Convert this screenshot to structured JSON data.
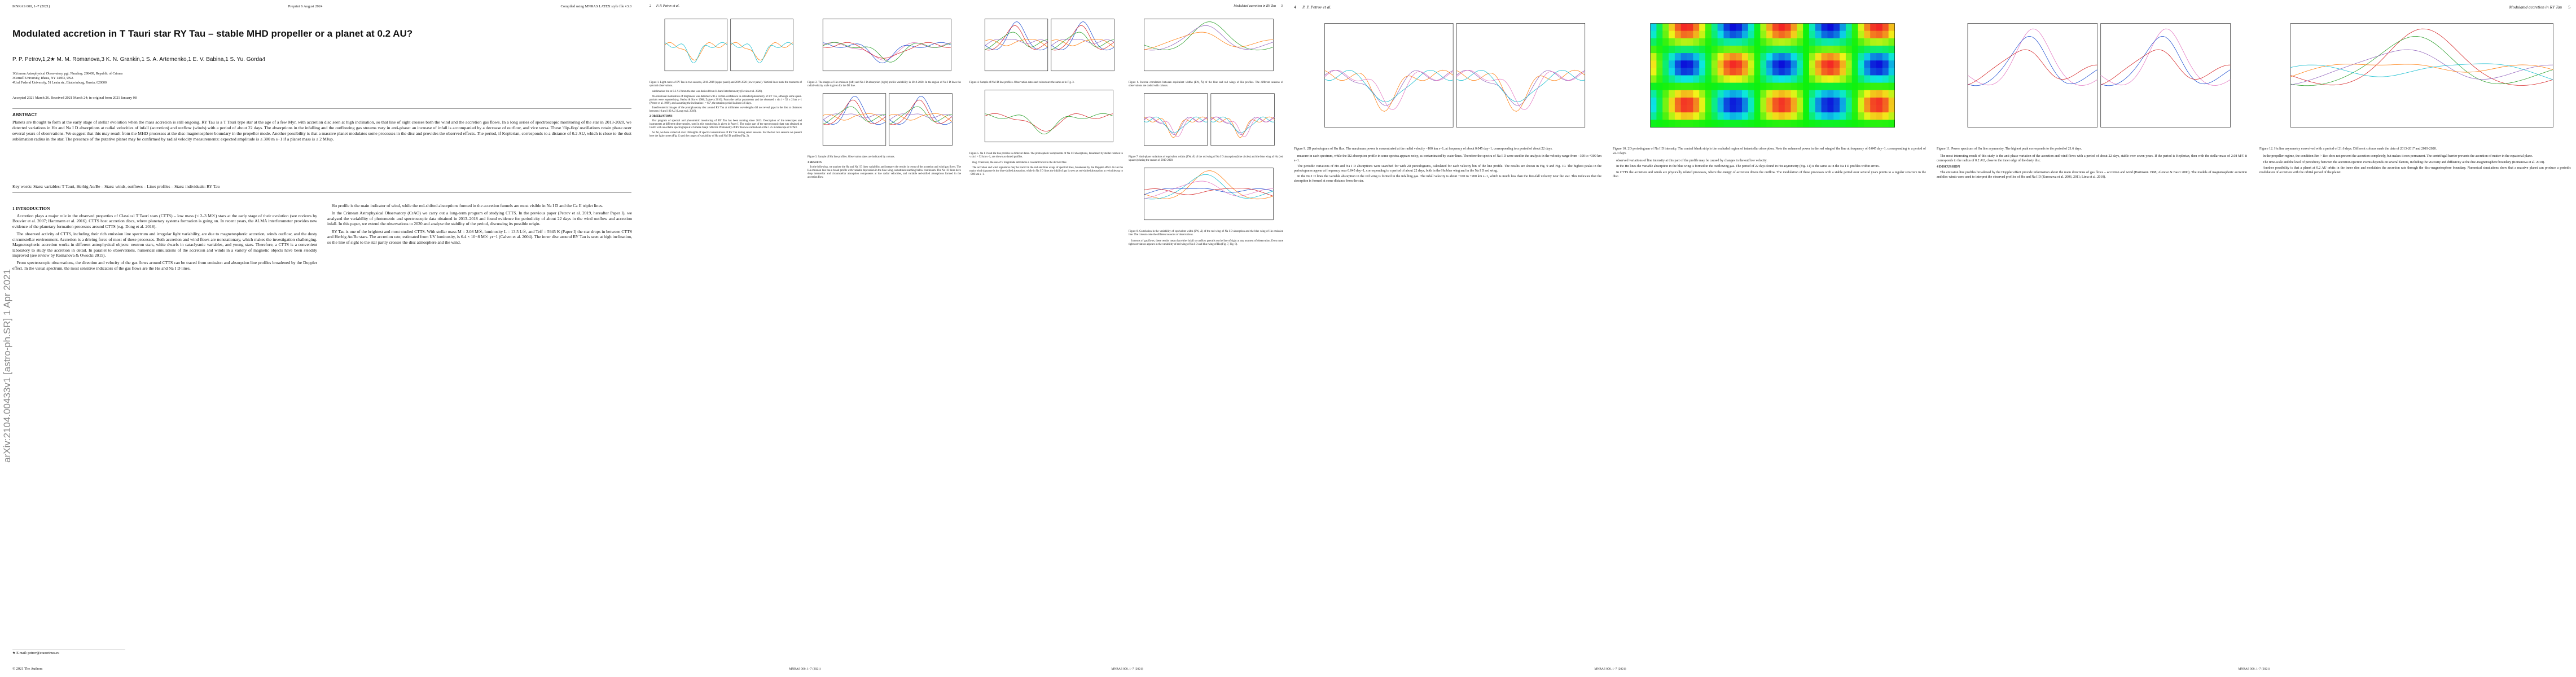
{
  "pages": [
    {
      "header": {
        "left": "MNRAS 000, 1–7 (2021)",
        "center": "Preprint 6 August 2024",
        "right": "Compiled using MNRAS LATEX style file v3.0"
      },
      "title": "Modulated accretion in T Tauri star RY Tau – stable MHD propeller or a planet at 0.2 AU?",
      "authors": "P. P. Petrov,1,2★ M. M. Romanova,3 K. N. Grankin,1 S. A. Artemenko,1 E. V. Babina,1 S. Yu. Gorda4",
      "affiliations": [
        "1Crimean Astrophysical Observatory, pgt. Nauchny, 298409, Republic of Crimea",
        "3Cornell University, Ithaca, NY 14853, USA",
        "4Ural Federal University, 51 Lenin str., Ekaterinburg, Russia, 620000"
      ],
      "dates": "Accepted 2021 March 26. Received 2021 March 24; in original form 2021 January 08",
      "abstract": {
        "heading": "ABSTRACT",
        "text": "Planets are thought to form at the early stage of stellar evolution when the mass accretion is still ongoing. RY Tau is a T Tauri type star at the age of a few Myr, with accretion disc seen at high inclination, so that line of sight crosses both the wind and the accretion gas flows. In a long series of spectroscopic monitoring of the star in 2013-2020, we detected variations in Hα and Na I D absorptions at radial velocities of infall (accretion) and outflow (winds) with a period of about 22 days. The absorptions in the infalling and the outflowing gas streams vary in anti-phase: an increase of infall is accompanied by a decrease of outflow, and vice versa. These 'flip-flop' oscillations retain phase over several years of observations. We suggest that this may result from the MHD processes at the disc-magnetosphere boundary in the propeller mode. Another possibility is that a massive planet modulates some processes in the disc and provides the observed effects. The period, if Keplerian, corresponds to a distance of 0.2 AU, which is close to the dust sublimation radius in the star. The presence of the putative planet may be confirmed by radial velocity measurements: expected amplitude is ≤ 300 m s−1 if a planet mass is ≤ 2 MJup."
      },
      "keywords": "Key words: Stars: variables: T Tauri, Herbig Ae/Be – Stars: winds, outflows – Line: profiles – Stars: individuals: RY Tau",
      "arxiv": "arXiv:2104.00433v1 [astro-ph.SR] 1 Apr 2021",
      "columns": [
        [
          {
            "heading": "1 INTRODUCTION"
          },
          {
            "text": "Accretion plays a major role in the observed properties of Classical T Tauri stars (CTTS) – low mass (< 2–3 M☉) stars at the early stage of their evolution (see reviews by Bouvier et al. 2007; Hartmann et al. 2016). CTTS host accretion discs, where planetary systems formation is going on. In recent years, the ALMA interferometer provides new evidence of the planetary formation processes around CTTS (e.g. Dong et al. 2018)."
          },
          {
            "text": "The observed activity of CTTS, including their rich emission line spectrum and irregular light variability, are due to magnetospheric accretion, winds outflow, and the dusty circumstellar environment. Accretion is a driving force of most of these processes. Both accretion and wind flows are nonstationary, which makes the investigation challenging. Magnetospheric accretion works in different astrophysical objects: neutron stars, white dwarfs in cataclysmic variables, and young stars. Therefore, a CTTS is a convenient laboratory to study the accretion in detail. In parallel to observations, numerical simulations of the accretion and winds in a variety of magnetic objects have been steadily improved (see review by Romanova & Owocki 2015)."
          },
          {
            "text": "From spectroscopic observations, the direction and velocity of the gas flows around CTTS can be traced from emission and absorption line profiles broadened by the Doppler effect. In the visual spectrum, the most sensitive indicators of the gas flows are the Hα and Na I D lines."
          }
        ],
        [
          {
            "text": "Hα profile is the main indicator of wind, while the red-shifted absorptions formed in the accretion funnels are most visible in Na I D and the Ca II triplet lines."
          },
          {
            "text": "In the Crimean Astrophysical Observatory (CrAO) we carry out a long-term program of studying CTTS. In the previous paper (Petrov et al. 2019, hereafter Paper I), we analysed the variability of photometric and spectroscopic data obtained in 2013–2018 and found evidence for periodicity of about 22 days in the wind outflow and accretion infall. In this paper, we extend the observations to 2020 and analyse the stability of the period, discussing its possible origin."
          },
          {
            "text": "RY Tau is one of the brightest and most studied CTTS. With stellar mass M = 2.08 M☉, luminosity L = 13.5 L☉, and Teff = 5945 K (Paper I) the star drops in between CTTS and Herbig Ae/Be stars. The accretion rate, estimated from UV luminosity, is 6.4 × 10−8 M☉ yr−1 (Calvet et al. 2004). The inner disc around RY Tau is seen at high inclination, so the line of sight to the star partly crosses the disc atmosphere and the wind."
          }
        ]
      ],
      "footnote": "★ E-mail: petrov@craocrimea.ru",
      "footer": "© 2021 The Authors"
    },
    {
      "header": {
        "number": "2",
        "running": "P. P. Petrov et al."
      },
      "columns": [
        [
          {
            "caption": "Figure 1. Light curve of RY Tau in two seasons, 2018-2019 (upper panel) and 2019-2020 (lower panel). Vertical lines mark the moments of spectral observations."
          },
          {
            "text": "sublimation rim at 0.2 AU from the star was derived from K-band interferometry (Davies et al. 2020)."
          },
          {
            "text": "No rotational modulation of brightness was detected with a certain confidence in extended photometry of RY Tau, although some quasi-periods were reported (e.g. Herbst & Koret 1988; Zajtseva 2010). From the stellar parameters and the observed v sin i = 52 ± 2 km s−1 (Petrov et al. 1999), and assuming the inclination i = 65°, the rotation period is about 3.6 days."
          },
          {
            "text": "Interferometric images of the protoplanetary disc around RY Tau at millimeter wavelengths did not reveal gaps in the disc at distances between 10 and 100 AU (Long et al. 2018)."
          },
          {
            "heading": "2 OBSERVATIONS"
          },
          {
            "text": "Our program of spectral and photometric monitoring of RY Tau has been running since 2013. Description of the telescopes and instruments at different observatories, used in this monitoring, is given in Paper I. The major part of the spectroscopic data was obtained at CrAO with an echelle spectrograph at 2.6 metre Shajn reflector. Photometry of RY Tau was carried out at the 1.25 m telescope of CrAO."
          },
          {
            "text": "So far, we have collected over 160 nights of spectral observations of RY Tau during seven seasons. For the last two seasons we present here the light curves (Fig. 1) and the ranges of variability of Hα and Na I D profiles (Fig. 2)."
          }
        ],
        [
          {
            "caption": "Figure 2. The ranges of Hα emission (left) and Na I D absorption (right) profile variability in 2019-2020. In the region of Na I D lines the radial velocity scale is given for the D2 line."
          },
          {
            "caption": "Figure 3. Sample of Hα line profiles. Observation dates are indicated by colours."
          },
          {
            "heading": "3 RESULTS"
          },
          {
            "text": "In the following, we analyse the Hα and Na I D lines variability and interpret the results in terms of the accretion and wind gas flows. The Hα emission line has a broad profile with variable depression in the blue wing, sometimes reaching below continuum. The Na I D lines have deep interstellar and circumstellar absorption components at low radial velocities, and variable red-shifted absorptions formed in the accretion flow."
          }
        ]
      ],
      "footer": "MNRAS 000, 1–7 (2021)"
    },
    {
      "header": {
        "number": "3",
        "running": "Modulated accretion in RY Tau"
      },
      "columns": [
        [
          {
            "caption": "Figure 4. Sample of Na I D line profiles. Observation dates and colours are the same as in Fig. 3."
          },
          {
            "caption": "Figure 5. Na I D and Hα line profiles in different dates. The photospheric components of Na I D absorptions, broadened by stellar rotation to v sin i = 52 km s−1, are shown as dotted profiles."
          },
          {
            "text": "mag. Therefore, the use of V magnitude introduces a constant factor to the derived flux."
          },
          {
            "text": "The accretion and wind signatures may be traced in the red and blue wings of spectral lines, broadened by the Doppler effect. In Hα the major wind signature is the blue-shifted absorption, while in Na I D lines the infall of gas is seen as red-shifted absorption at velocities up to +300 km s−1."
          }
        ],
        [
          {
            "caption": "Figure 6. Inverse correlation between equivalent widths (EW, Å) of the blue and red wings of Hα profiles. The different seasons of observations are coded with colours."
          },
          {
            "caption": "Figure 7. Anti-phase variations of equivalent widths (EW, Å) of the red wing of Na I D absorption (blue circles) and the blue wing of Hα (red squares) during the season of 2019-2020."
          },
          {
            "caption": "Figure 8. Correlation in the variability of equivalent width (EW, Å) of the red wing of Na I D absorption and the blue wing of Hα emission line. The colours code the different seasons of observations."
          },
          {
            "text": "In terms of gas flows, these results mean that either infall or outflow prevails on the line of sight at any moment of observation. Even more tight correlation appears in the variability of red wing of Na I D and blue wing of Hα (Fig. 7, Fig. 8)."
          }
        ]
      ],
      "footer": "MNRAS 000, 1–7 (2021)"
    },
    {
      "header": {
        "number": "4",
        "running": "P. P. Petrov et al."
      },
      "columns": [
        [
          {
            "caption": "Figure 9. 2D periodogram of Hα flux. The maximum power is concentrated at the radial velocity −100 km s−1, at frequency of about 0.045 day−1, corresponding to a period of about 22 days."
          },
          {
            "text": "measure in each spectrum, while the D2 absorption profile in some spectra appears noisy, as contaminated by water lines. Therefore the spectra of Na I D were used in the analysis in the velocity range from −300 to +300 km s−1."
          },
          {
            "text": "The periodic variations of Hα and Na I D absorptions were searched for with 2D periodograms, calculated for each velocity bin of the line profile. The results are shown in Fig. 9 and Fig. 10. The highest peaks in the periodograms appear at frequency near 0.045 day−1, corresponding to a period of about 22 days, both in the Hα blue wing and in the Na I D red wing."
          },
          {
            "text": "In the Na I D lines the variable absorption in the red wing is formed in the infalling gas. The infall velocity is about +100 to +200 km s−1, which is much less than the free-fall velocity near the star. This indicates that the absorption is formed at some distance from the star."
          }
        ],
        [
          {
            "caption": "Figure 10. 2D periodogram of Na I D intensity. The central blank strip is the excluded region of interstellar absorption. Note the enhanced power in the red wing of the line at frequency of 0.045 day−1, corresponding to a period of 22.3 days."
          },
          {
            "text": "observed variations of line intensity at this part of the profile may be caused by changes in the outflow velocity."
          },
          {
            "text": "In the Hα lines the variable absorption in the blue wing is formed in the outflowing gas. The period of 22 days found in Hα asymmetry (Fig. 11) is the same as in the Na I D profiles within errors."
          },
          {
            "text": "In CTTS the accretion and winds are physically related processes, where the energy of accretion drives the outflow. The modulation of these processes with a stable period over several years points to a regular structure in the disc."
          }
        ]
      ],
      "footer": "MNRAS 000, 1–7 (2021)"
    },
    {
      "header": {
        "number": "5",
        "running": "Modulated accretion in RY Tau"
      },
      "columns": [
        [
          {
            "caption": "Figure 11. Power spectrum of Hα line asymmetry. The highest peak corresponds to the period of 21.6 days."
          },
          {
            "text": "The most interesting result of this study is the anti-phase variation of the accretion and wind flows with a period of about 22 days, stable over seven years. If the period is Keplerian, then with the stellar mass of 2.08 M☉ it corresponds to the radius of 0.2 AU, close to the inner edge of the dusty disc."
          },
          {
            "heading": "4 DISCUSSION"
          },
          {
            "text": "The emission line profiles broadened by the Doppler effect provide information about the main directions of gas flows – accretion and wind (Hartmann 1998; Alencar & Basri 2000). The models of magnetospheric accretion and disc winds were used to interpret the observed profiles of Hα and Na I D (Kurosawa et al. 2006, 2011; Lima et al. 2010)."
          }
        ],
        [
          {
            "caption": "Figure 12. Hα line asymmetry convolved with a period of 21.6 days. Different colours mark the data of 2013-2017 and 2019-2020."
          },
          {
            "text": "In the propeller regime, the condition Rm > Rco does not prevent the accretion completely, but makes it non-permanent. The centrifugal barrier prevents the accretion of matter in the equatorial plane."
          },
          {
            "text": "The time-scale and the level of periodicity between the accretion/ejection events depends on several factors, including the viscosity and diffusivity at the disc-magnetosphere boundary (Romanova et al. 2018)."
          },
          {
            "text": "Another possibility is that a planet at 0.2 AU orbits in the inner disc and modulates the accretion rate through the disc-magnetosphere boundary. Numerical simulations show that a massive planet can produce a periodic modulation of accretion with the orbital period of the planet."
          }
        ]
      ],
      "footer": "MNRAS 000, 1–7 (2021)"
    }
  ]
}
